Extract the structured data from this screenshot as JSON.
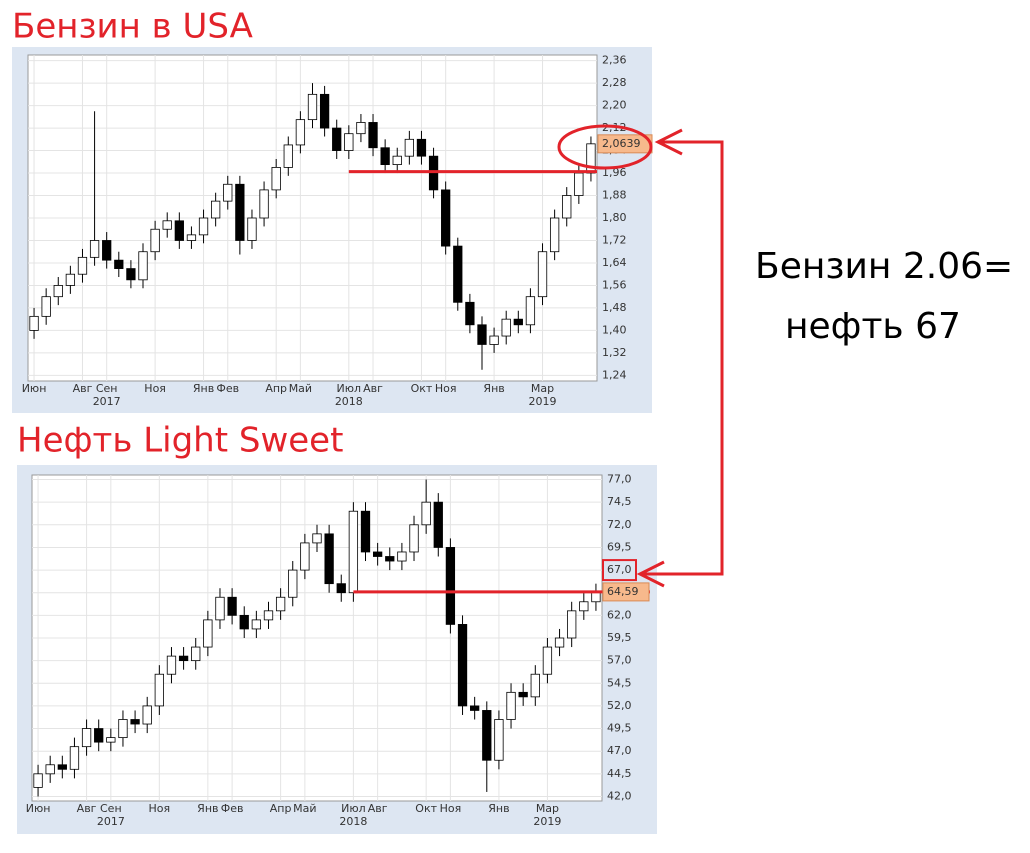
{
  "chart_data": [
    {
      "type": "candlestick",
      "title": "Бензин в USA",
      "categories": [
        "Июн",
        null,
        null,
        null,
        "Авг",
        null,
        "Сен",
        null,
        null,
        null,
        "Ноя",
        null,
        null,
        null,
        "Янв",
        null,
        "Фев",
        null,
        null,
        null,
        "Апр",
        null,
        "Май",
        null,
        null,
        null,
        "Июл",
        null,
        "Авг",
        null,
        null,
        null,
        "Окт",
        null,
        "Ноя",
        null,
        null,
        null,
        "Янв",
        null,
        null,
        null,
        "Мар",
        null,
        null,
        null,
        null
      ],
      "year_labels": [
        null,
        null,
        null,
        null,
        null,
        null,
        "2017",
        null,
        null,
        null,
        null,
        null,
        null,
        null,
        null,
        null,
        null,
        null,
        null,
        null,
        null,
        null,
        null,
        null,
        null,
        null,
        "2018",
        null,
        null,
        null,
        null,
        null,
        null,
        null,
        null,
        null,
        null,
        null,
        null,
        null,
        null,
        null,
        "2019",
        null,
        null,
        null,
        null
      ],
      "open": [
        1.4,
        1.45,
        1.52,
        1.56,
        1.6,
        1.66,
        1.72,
        1.65,
        1.62,
        1.58,
        1.68,
        1.76,
        1.79,
        1.72,
        1.74,
        1.8,
        1.86,
        1.92,
        1.72,
        1.8,
        1.9,
        1.98,
        2.06,
        2.15,
        2.24,
        2.12,
        2.04,
        2.1,
        2.14,
        2.05,
        1.99,
        2.02,
        2.08,
        2.02,
        1.9,
        1.7,
        1.5,
        1.42,
        1.35,
        1.38,
        1.44,
        1.42,
        1.52,
        1.68,
        1.8,
        1.88,
        1.96
      ],
      "high": [
        1.48,
        1.55,
        1.59,
        1.63,
        1.69,
        2.18,
        1.75,
        1.68,
        1.65,
        1.71,
        1.79,
        1.82,
        1.82,
        1.77,
        1.83,
        1.89,
        1.95,
        1.95,
        1.83,
        1.93,
        2.01,
        2.09,
        2.18,
        2.28,
        2.27,
        2.15,
        2.13,
        2.17,
        2.17,
        2.08,
        2.05,
        2.11,
        2.11,
        2.05,
        1.93,
        1.73,
        1.53,
        1.45,
        1.41,
        1.47,
        1.47,
        1.55,
        1.71,
        1.83,
        1.91,
        1.99,
        2.09
      ],
      "low": [
        1.37,
        1.42,
        1.49,
        1.53,
        1.57,
        1.63,
        1.62,
        1.59,
        1.55,
        1.55,
        1.65,
        1.73,
        1.69,
        1.69,
        1.71,
        1.77,
        1.83,
        1.67,
        1.69,
        1.77,
        1.87,
        1.95,
        2.03,
        2.12,
        2.09,
        2.01,
        2.01,
        2.07,
        2.02,
        1.96,
        1.96,
        1.99,
        1.99,
        1.87,
        1.67,
        1.47,
        1.39,
        1.26,
        1.32,
        1.35,
        1.39,
        1.39,
        1.49,
        1.65,
        1.77,
        1.85,
        1.93
      ],
      "close": [
        1.45,
        1.52,
        1.56,
        1.6,
        1.66,
        1.72,
        1.65,
        1.62,
        1.58,
        1.68,
        1.76,
        1.79,
        1.72,
        1.74,
        1.8,
        1.86,
        1.92,
        1.72,
        1.8,
        1.9,
        1.98,
        2.06,
        2.15,
        2.24,
        2.12,
        2.04,
        2.1,
        2.14,
        2.05,
        1.99,
        2.02,
        2.08,
        2.02,
        1.9,
        1.7,
        1.5,
        1.42,
        1.35,
        1.38,
        1.44,
        1.42,
        1.52,
        1.68,
        1.8,
        1.88,
        1.96,
        2.0639
      ],
      "last_label": {
        "value": 2.0639,
        "label": "2,0639"
      },
      "reference_line": 1.965,
      "ylim": [
        1.22,
        2.38
      ],
      "yticks": [
        {
          "value": 1.24,
          "label": "1,24"
        },
        {
          "value": 1.32,
          "label": "1,32"
        },
        {
          "value": 1.4,
          "label": "1,40"
        },
        {
          "value": 1.48,
          "label": "1,48"
        },
        {
          "value": 1.56,
          "label": "1,56"
        },
        {
          "value": 1.64,
          "label": "1,64"
        },
        {
          "value": 1.72,
          "label": "1,72"
        },
        {
          "value": 1.8,
          "label": "1,80"
        },
        {
          "value": 1.88,
          "label": "1,88"
        },
        {
          "value": 1.96,
          "label": "1,96"
        },
        {
          "value": 2.04,
          "label": "2,04"
        },
        {
          "value": 2.12,
          "label": "2,12"
        },
        {
          "value": 2.2,
          "label": "2,20"
        },
        {
          "value": 2.28,
          "label": "2,28"
        },
        {
          "value": 2.36,
          "label": "2,36"
        }
      ],
      "grid": true
    },
    {
      "type": "candlestick",
      "title": "Нефть Light Sweet",
      "categories": [
        "Июн",
        null,
        null,
        null,
        "Авг",
        null,
        "Сен",
        null,
        null,
        null,
        "Ноя",
        null,
        null,
        null,
        "Янв",
        null,
        "Фев",
        null,
        null,
        null,
        "Апр",
        null,
        "Май",
        null,
        null,
        null,
        "Июл",
        null,
        "Авг",
        null,
        null,
        null,
        "Окт",
        null,
        "Ноя",
        null,
        null,
        null,
        "Янв",
        null,
        null,
        null,
        "Мар",
        null,
        null,
        null,
        null
      ],
      "year_labels": [
        null,
        null,
        null,
        null,
        null,
        null,
        "2017",
        null,
        null,
        null,
        null,
        null,
        null,
        null,
        null,
        null,
        null,
        null,
        null,
        null,
        null,
        null,
        null,
        null,
        null,
        null,
        "2018",
        null,
        null,
        null,
        null,
        null,
        null,
        null,
        null,
        null,
        null,
        null,
        null,
        null,
        null,
        null,
        "2019",
        null,
        null,
        null,
        null
      ],
      "open": [
        43.0,
        44.5,
        45.5,
        45.0,
        47.5,
        49.5,
        48.0,
        48.5,
        50.5,
        50.0,
        52.0,
        55.5,
        57.5,
        57.0,
        58.5,
        61.5,
        64.0,
        62.0,
        60.5,
        61.5,
        62.5,
        64.0,
        67.0,
        70.0,
        71.0,
        65.5,
        64.5,
        73.5,
        69.0,
        68.5,
        68.0,
        69.0,
        72.0,
        74.5,
        69.5,
        61.0,
        52.0,
        51.5,
        46.0,
        50.5,
        53.5,
        53.0,
        55.5,
        58.5,
        59.5,
        62.5,
        63.5
      ],
      "high": [
        45.5,
        46.5,
        46.5,
        48.5,
        50.5,
        50.5,
        49.5,
        51.5,
        51.5,
        53.0,
        56.5,
        58.5,
        58.5,
        59.5,
        62.5,
        65.0,
        65.0,
        63.0,
        62.5,
        63.5,
        65.0,
        68.0,
        71.0,
        72.0,
        72.0,
        66.5,
        74.5,
        74.5,
        70.0,
        69.5,
        70.0,
        73.0,
        77.0,
        75.5,
        70.5,
        62.0,
        53.0,
        52.5,
        51.5,
        54.5,
        54.5,
        56.5,
        59.5,
        60.5,
        63.5,
        64.5,
        65.5
      ],
      "low": [
        42.0,
        43.5,
        44.0,
        44.0,
        46.5,
        47.0,
        47.0,
        47.5,
        49.0,
        49.0,
        51.0,
        54.5,
        56.0,
        56.0,
        57.5,
        60.5,
        61.0,
        59.5,
        59.5,
        60.5,
        61.5,
        63.0,
        66.0,
        69.0,
        64.5,
        63.5,
        63.5,
        68.0,
        67.5,
        67.0,
        67.0,
        68.0,
        71.0,
        68.5,
        60.0,
        51.0,
        50.5,
        42.5,
        45.0,
        49.5,
        52.0,
        52.0,
        54.5,
        57.5,
        58.5,
        61.5,
        62.5
      ],
      "close": [
        44.5,
        45.5,
        45.0,
        47.5,
        49.5,
        48.0,
        48.5,
        50.5,
        50.0,
        52.0,
        55.5,
        57.5,
        57.0,
        58.5,
        61.5,
        64.0,
        62.0,
        60.5,
        61.5,
        62.5,
        64.0,
        67.0,
        70.0,
        71.0,
        65.5,
        64.5,
        73.5,
        69.0,
        68.5,
        68.0,
        69.0,
        72.0,
        74.5,
        69.5,
        61.0,
        52.0,
        51.5,
        46.0,
        50.5,
        53.5,
        53.0,
        55.5,
        58.5,
        59.5,
        62.5,
        63.5,
        64.59
      ],
      "last_label": {
        "value": 64.59,
        "label": "64,59"
      },
      "reference_line": 64.59,
      "highlight_tick": 67,
      "ylim": [
        41.5,
        77.5
      ],
      "yticks": [
        {
          "value": 42,
          "label": "42,0"
        },
        {
          "value": 44.5,
          "label": "44,5"
        },
        {
          "value": 47,
          "label": "47,0"
        },
        {
          "value": 49.5,
          "label": "49,5"
        },
        {
          "value": 52,
          "label": "52,0"
        },
        {
          "value": 54.5,
          "label": "54,5"
        },
        {
          "value": 57,
          "label": "57,0"
        },
        {
          "value": 59.5,
          "label": "59,5"
        },
        {
          "value": 62,
          "label": "62,0"
        },
        {
          "value": 64.5,
          "label": "64,5"
        },
        {
          "value": 67,
          "label": "67,0"
        },
        {
          "value": 69.5,
          "label": "69,5"
        },
        {
          "value": 72,
          "label": "72,0"
        },
        {
          "value": 74.5,
          "label": "74,5"
        },
        {
          "value": 77,
          "label": "77,0"
        }
      ],
      "grid": true
    }
  ],
  "annotation": [
    "Бензин 2.06=",
    "нефть 67"
  ]
}
